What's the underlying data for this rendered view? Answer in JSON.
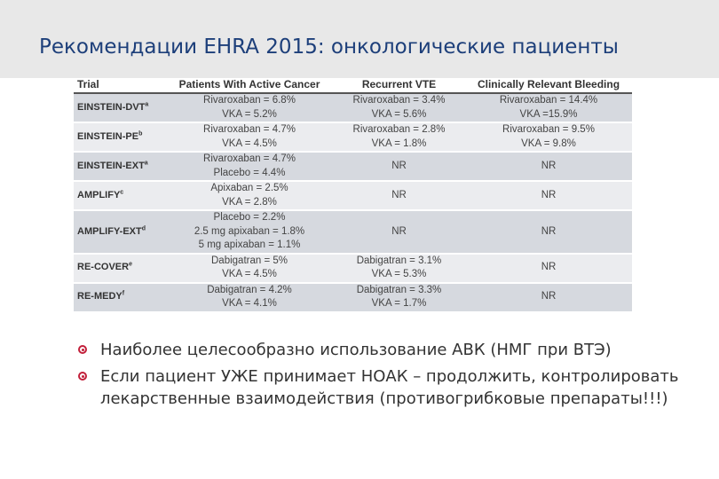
{
  "title": "Рекомендации EHRA 2015: онкологические пациенты",
  "table": {
    "headers": [
      "Trial",
      "Patients With Active Cancer",
      "Recurrent VTE",
      "Clinically Relevant Bleeding"
    ],
    "rows": [
      {
        "trial": "EINSTEIN-DVT",
        "sup": "a",
        "cancer": [
          "Rivaroxaban = 6.8%",
          "VKA = 5.2%"
        ],
        "vte": [
          "Rivaroxaban = 3.4%",
          "VKA = 5.6%"
        ],
        "bleeding": [
          "Rivaroxaban = 14.4%",
          "VKA =15.9%"
        ]
      },
      {
        "trial": "EINSTEIN-PE",
        "sup": "b",
        "cancer": [
          "Rivaroxaban = 4.7%",
          "VKA = 4.5%"
        ],
        "vte": [
          "Rivaroxaban = 2.8%",
          "VKA = 1.8%"
        ],
        "bleeding": [
          "Rivaroxaban = 9.5%",
          "VKA = 9.8%"
        ]
      },
      {
        "trial": "EINSTEIN-EXT",
        "sup": "a",
        "cancer": [
          "Rivaroxaban = 4.7%",
          "Placebo = 4.4%"
        ],
        "vte": [
          "NR"
        ],
        "bleeding": [
          "NR"
        ]
      },
      {
        "trial": "AMPLIFY",
        "sup": "c",
        "cancer": [
          "Apixaban = 2.5%",
          "VKA = 2.8%"
        ],
        "vte": [
          "NR"
        ],
        "bleeding": [
          "NR"
        ]
      },
      {
        "trial": "AMPLIFY-EXT",
        "sup": "d",
        "cancer": [
          "Placebo = 2.2%",
          "2.5 mg apixaban = 1.8%",
          "5 mg apixaban = 1.1%"
        ],
        "vte": [
          "NR"
        ],
        "bleeding": [
          "NR"
        ]
      },
      {
        "trial": "RE-COVER",
        "sup": "e",
        "cancer": [
          "Dabigatran = 5%",
          "VKA = 4.5%"
        ],
        "vte": [
          "Dabigatran = 3.1%",
          "VKA = 5.3%"
        ],
        "bleeding": [
          "NR"
        ]
      },
      {
        "trial": "RE-MEDY",
        "sup": "f",
        "cancer": [
          "Dabigatran = 4.2%",
          "VKA = 4.1%"
        ],
        "vte": [
          "Dabigatran = 3.3%",
          "VKA = 1.7%"
        ],
        "bleeding": [
          "NR"
        ]
      }
    ]
  },
  "bullets": [
    "Наиболее целесообразно использование АВК (НМГ при ВТЭ)",
    "Если пациент УЖЕ принимает НОАК – продолжить, контролировать лекарственные взаимодействия (противогрибковые препараты!!!)"
  ],
  "colors": {
    "title": "#1d3f7a",
    "bullet": "#c21f3a",
    "row_odd": "#d6d9df",
    "row_even": "#ebecef"
  }
}
